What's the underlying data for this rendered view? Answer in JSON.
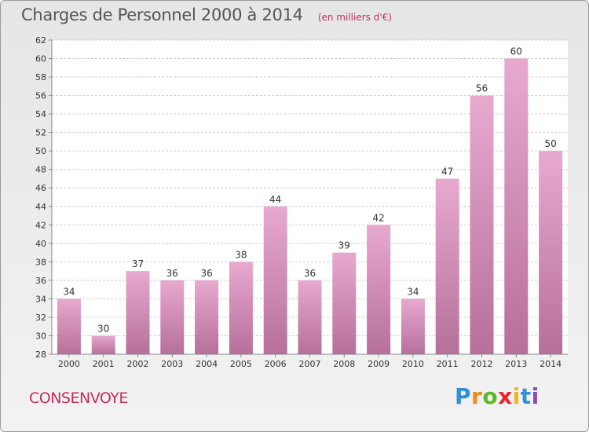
{
  "header": {
    "title": "Charges de Personnel 2000 à 2014",
    "subtitle": "(en milliers d'€)"
  },
  "footer": {
    "commune": "CONSENVOYE",
    "brand": [
      "P",
      "r",
      "o",
      "x",
      "i",
      "t",
      "i"
    ]
  },
  "colors": {
    "bar_top": "#e8a9cf",
    "bar_bottom": "#b6709a",
    "commune_text": "#c0305e"
  },
  "chart_data": {
    "type": "bar",
    "title": "Charges de Personnel 2000 à 2014",
    "subtitle": "(en milliers d'€)",
    "categories": [
      "2000",
      "2001",
      "2002",
      "2003",
      "2004",
      "2005",
      "2006",
      "2007",
      "2008",
      "2009",
      "2010",
      "2011",
      "2012",
      "2013",
      "2014"
    ],
    "values": [
      34,
      30,
      37,
      36,
      36,
      38,
      44,
      36,
      39,
      42,
      34,
      47,
      56,
      60,
      50
    ],
    "ylim": [
      28,
      62
    ],
    "yticks": [
      28,
      30,
      32,
      34,
      36,
      38,
      40,
      42,
      44,
      46,
      48,
      50,
      52,
      54,
      56,
      58,
      60,
      62
    ],
    "grid": true,
    "legend": "none"
  }
}
